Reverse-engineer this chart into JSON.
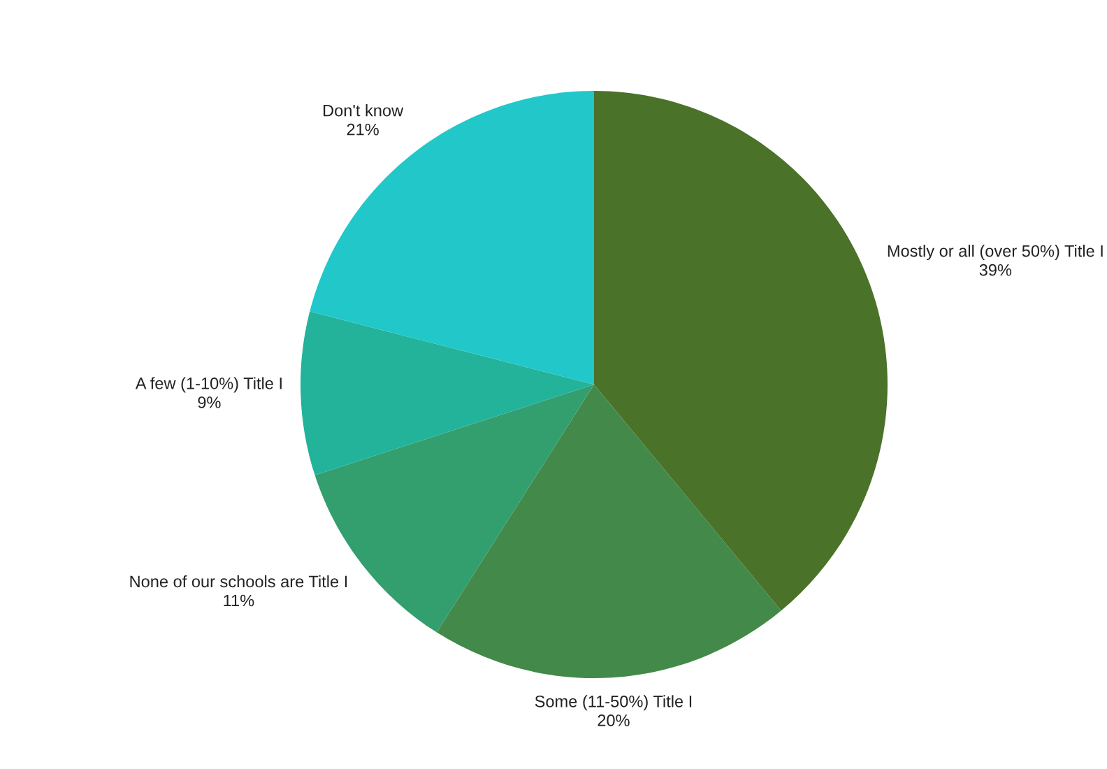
{
  "chart_data": {
    "type": "pie",
    "categories": [
      "Mostly or all (over 50%) Title I",
      "Some (11-50%) Title I",
      "None of our schools are Title I",
      "A few (1-10%) Title I",
      "Don't know"
    ],
    "values": [
      39,
      20,
      11,
      9,
      21
    ],
    "value_labels": [
      "39%",
      "20%",
      "11%",
      "9%",
      "21%"
    ],
    "colors": [
      "#4a7229",
      "#43894a",
      "#339e6e",
      "#22b39a",
      "#22c7c9"
    ],
    "legend": false
  }
}
